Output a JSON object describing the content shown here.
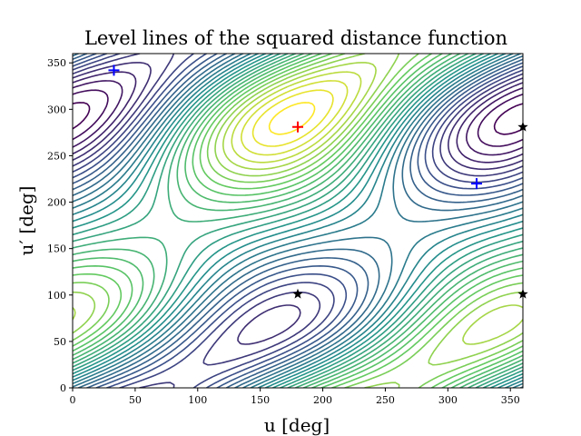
{
  "chart_data": {
    "type": "contour",
    "title": "Level lines of the squared distance function",
    "xlabel": "u [deg]",
    "ylabel": "u′ [deg]",
    "xlim": [
      0,
      360
    ],
    "ylim": [
      0,
      360
    ],
    "xticks": [
      0,
      50,
      100,
      150,
      200,
      250,
      300,
      350
    ],
    "yticks": [
      0,
      50,
      100,
      150,
      200,
      250,
      300,
      350
    ],
    "grid": false,
    "colormap": "viridis",
    "colormap_stops": [
      "#440154",
      "#3b528b",
      "#21918c",
      "#5ec962",
      "#fde725"
    ],
    "levels": 30,
    "markers": [
      {
        "symbol": "plus",
        "color": "#0000ff",
        "x": 33,
        "y": 342
      },
      {
        "symbol": "plus",
        "color": "#0000ff",
        "x": 323,
        "y": 220
      },
      {
        "symbol": "plus",
        "color": "#ff0000",
        "x": 180,
        "y": 281
      },
      {
        "symbol": "star",
        "color": "#000000",
        "x": 180,
        "y": 101
      },
      {
        "symbol": "star",
        "color": "#000000",
        "x": 360,
        "y": 281
      },
      {
        "symbol": "star",
        "color": "#000000",
        "x": 360,
        "y": 101
      }
    ]
  }
}
